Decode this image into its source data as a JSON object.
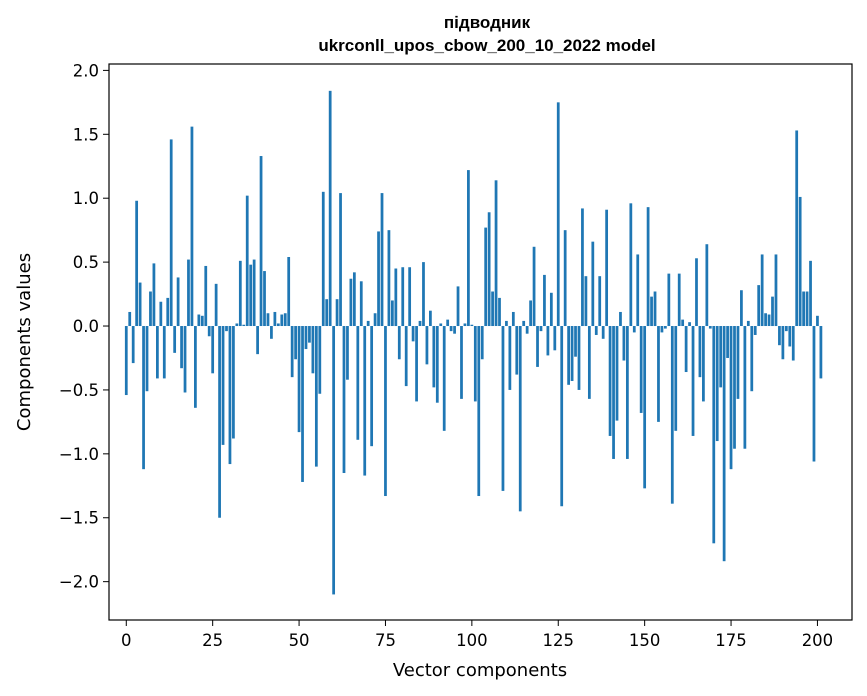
{
  "chart_data": {
    "type": "bar",
    "title": "підводник",
    "subtitle": "ukrconll_upos_cbow_200_10_2022 model",
    "xlabel": "Vector components",
    "ylabel": "Components values",
    "xlim": [
      -5,
      210
    ],
    "ylim": [
      -2.3,
      2.05
    ],
    "xticks": [
      0,
      25,
      50,
      75,
      100,
      125,
      150,
      175,
      200
    ],
    "xtick_labels": [
      "0",
      "25",
      "50",
      "75",
      "100",
      "125",
      "150",
      "175",
      "200"
    ],
    "yticks": [
      2.0,
      1.5,
      1.0,
      0.5,
      0.0,
      -0.5,
      -1.0,
      -1.5,
      -2.0
    ],
    "ytick_labels": [
      "2.0",
      "1.5",
      "1.0",
      "0.5",
      "0.0",
      "−0.5",
      "−1.0",
      "−1.5",
      "−2.0"
    ],
    "grid": false,
    "color": "#1f77b4",
    "values": [
      -0.54,
      0.11,
      -0.29,
      0.98,
      0.34,
      -1.12,
      -0.51,
      0.27,
      0.49,
      -0.41,
      0.19,
      -0.41,
      0.22,
      1.46,
      -0.21,
      0.38,
      -0.33,
      -0.52,
      0.52,
      1.56,
      -0.64,
      0.09,
      0.08,
      0.47,
      -0.08,
      -0.37,
      0.33,
      -1.5,
      -0.93,
      -0.04,
      -1.08,
      -0.88,
      0.02,
      0.51,
      0.01,
      1.02,
      0.48,
      0.52,
      -0.22,
      1.33,
      0.43,
      0.1,
      -0.1,
      0.11,
      0.02,
      0.09,
      0.1,
      0.54,
      -0.4,
      -0.26,
      -0.83,
      -1.22,
      -0.18,
      -0.13,
      -0.37,
      -1.1,
      -0.53,
      1.05,
      0.21,
      1.84,
      -2.1,
      0.21,
      1.04,
      -1.15,
      -0.42,
      0.37,
      0.42,
      -0.89,
      0.35,
      -1.17,
      0.04,
      -0.94,
      0.1,
      0.74,
      1.04,
      -1.33,
      0.75,
      0.2,
      0.45,
      -0.26,
      0.46,
      -0.47,
      0.46,
      -0.12,
      -0.59,
      0.04,
      0.5,
      -0.3,
      0.12,
      -0.48,
      -0.6,
      0.02,
      -0.82,
      0.05,
      -0.04,
      -0.06,
      0.31,
      -0.57,
      0.02,
      1.22,
      0.01,
      -0.59,
      -1.33,
      -0.26,
      0.77,
      0.89,
      0.27,
      1.14,
      0.22,
      -1.29,
      0.04,
      -0.5,
      0.11,
      -0.38,
      -1.45,
      0.04,
      -0.06,
      0.2,
      0.62,
      -0.32,
      -0.04,
      0.4,
      -0.23,
      0.26,
      -0.19,
      1.75,
      -1.41,
      0.75,
      -0.46,
      -0.43,
      -0.24,
      -0.5,
      0.92,
      0.39,
      -0.57,
      0.66,
      -0.07,
      0.39,
      -0.1,
      0.91,
      -0.86,
      -1.04,
      -0.74,
      0.11,
      -0.27,
      -1.04,
      0.96,
      -0.05,
      0.56,
      -0.68,
      -1.27,
      0.93,
      0.23,
      0.27,
      -0.75,
      -0.05,
      -0.02,
      0.41,
      -1.39,
      -0.82,
      0.41,
      0.05,
      -0.36,
      0.03,
      -0.86,
      0.53,
      -0.4,
      -0.59,
      0.64,
      -0.02,
      -1.7,
      -0.9,
      -0.48,
      -1.84,
      -0.25,
      -1.12,
      -0.96,
      -0.57,
      0.28,
      -0.96,
      0.04,
      -0.51,
      -0.07,
      0.32,
      0.56,
      0.1,
      0.09,
      0.23,
      0.56,
      -0.15,
      -0.26,
      -0.04,
      -0.16,
      -0.27,
      1.53,
      1.01,
      0.27,
      0.27,
      0.51,
      -1.06,
      0.08,
      -0.41
    ]
  }
}
